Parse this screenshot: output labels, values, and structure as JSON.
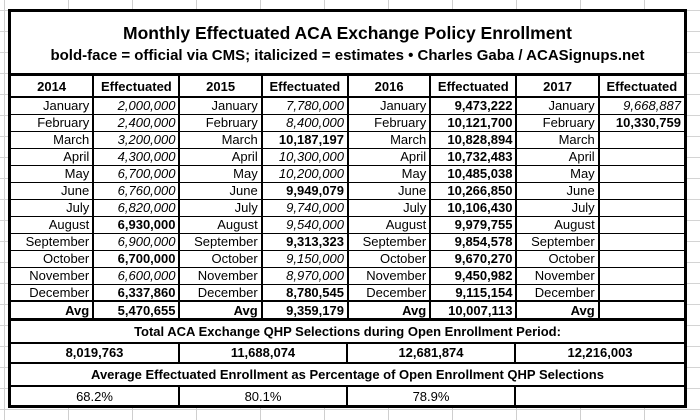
{
  "title": "Monthly Effectuated ACA Exchange Policy Enrollment",
  "subtitle": "bold-face = official via CMS; italicized = estimates  •  Charles Gaba / ACASignups.net",
  "effectuated_header": "Effectuated",
  "avg_label": "Avg",
  "months": [
    "January",
    "February",
    "March",
    "April",
    "May",
    "June",
    "July",
    "August",
    "September",
    "October",
    "November",
    "December"
  ],
  "years": [
    {
      "label": "2014",
      "values": [
        {
          "text": "2,000,000",
          "style": "estimate"
        },
        {
          "text": "2,400,000",
          "style": "estimate"
        },
        {
          "text": "3,200,000",
          "style": "estimate"
        },
        {
          "text": "4,300,000",
          "style": "estimate"
        },
        {
          "text": "6,700,000",
          "style": "estimate"
        },
        {
          "text": "6,760,000",
          "style": "estimate"
        },
        {
          "text": "6,820,000",
          "style": "estimate"
        },
        {
          "text": "6,930,000",
          "style": "official"
        },
        {
          "text": "6,900,000",
          "style": "estimate"
        },
        {
          "text": "6,700,000",
          "style": "official"
        },
        {
          "text": "6,600,000",
          "style": "estimate"
        },
        {
          "text": "6,337,860",
          "style": "official"
        }
      ],
      "avg": {
        "text": "5,470,655",
        "style": "official"
      }
    },
    {
      "label": "2015",
      "values": [
        {
          "text": "7,780,000",
          "style": "estimate"
        },
        {
          "text": "8,400,000",
          "style": "estimate"
        },
        {
          "text": "10,187,197",
          "style": "official"
        },
        {
          "text": "10,300,000",
          "style": "estimate"
        },
        {
          "text": "10,200,000",
          "style": "estimate"
        },
        {
          "text": "9,949,079",
          "style": "official"
        },
        {
          "text": "9,740,000",
          "style": "estimate"
        },
        {
          "text": "9,540,000",
          "style": "estimate"
        },
        {
          "text": "9,313,323",
          "style": "official"
        },
        {
          "text": "9,150,000",
          "style": "estimate"
        },
        {
          "text": "8,970,000",
          "style": "estimate"
        },
        {
          "text": "8,780,545",
          "style": "official"
        }
      ],
      "avg": {
        "text": "9,359,179",
        "style": "official"
      }
    },
    {
      "label": "2016",
      "values": [
        {
          "text": "9,473,222",
          "style": "official"
        },
        {
          "text": "10,121,700",
          "style": "official"
        },
        {
          "text": "10,828,894",
          "style": "official"
        },
        {
          "text": "10,732,483",
          "style": "official"
        },
        {
          "text": "10,485,038",
          "style": "official"
        },
        {
          "text": "10,266,850",
          "style": "official"
        },
        {
          "text": "10,106,430",
          "style": "official"
        },
        {
          "text": "9,979,755",
          "style": "official"
        },
        {
          "text": "9,854,578",
          "style": "official"
        },
        {
          "text": "9,670,270",
          "style": "official"
        },
        {
          "text": "9,450,982",
          "style": "official"
        },
        {
          "text": "9,115,154",
          "style": "official"
        }
      ],
      "avg": {
        "text": "10,007,113",
        "style": "official"
      }
    },
    {
      "label": "2017",
      "values": [
        {
          "text": "9,668,887",
          "style": "estimate"
        },
        {
          "text": "10,330,759",
          "style": "official"
        },
        {
          "text": "",
          "style": "empty"
        },
        {
          "text": "",
          "style": "empty"
        },
        {
          "text": "",
          "style": "empty"
        },
        {
          "text": "",
          "style": "empty"
        },
        {
          "text": "",
          "style": "empty"
        },
        {
          "text": "",
          "style": "empty"
        },
        {
          "text": "",
          "style": "empty"
        },
        {
          "text": "",
          "style": "empty"
        },
        {
          "text": "",
          "style": "empty"
        },
        {
          "text": "",
          "style": "empty"
        }
      ],
      "avg": {
        "text": "",
        "style": "empty"
      }
    }
  ],
  "totals": {
    "heading": "Total ACA Exchange QHP Selections during Open Enrollment Period:",
    "values": [
      "8,019,763",
      "11,688,074",
      "12,681,874",
      "12,216,003"
    ],
    "pct_heading": "Average Effectuated Enrollment as Percentage of Open Enrollment QHP Selections",
    "pct_values": [
      "68.2%",
      "80.1%",
      "78.9%",
      ""
    ]
  },
  "colors": {
    "border": "#000000",
    "text": "#000000",
    "gridline": "#d0d0d0",
    "background": "#ffffff"
  }
}
